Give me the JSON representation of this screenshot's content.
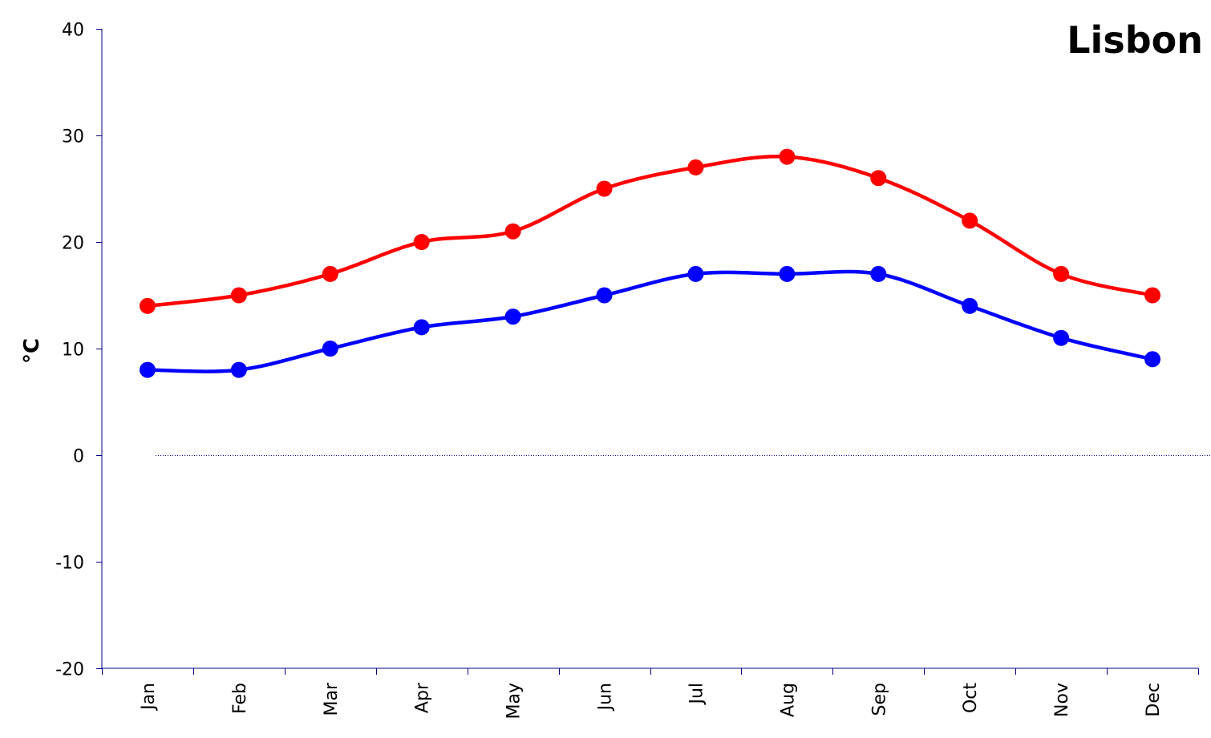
{
  "chart_data": {
    "type": "line",
    "title": "Lisbon",
    "ylabel": "°C",
    "xlabel": "",
    "categories": [
      "Jan",
      "Feb",
      "Mar",
      "Apr",
      "May",
      "Jun",
      "Jul",
      "Aug",
      "Sep",
      "Oct",
      "Nov",
      "Dec"
    ],
    "ylim": [
      -20,
      40
    ],
    "yticks": [
      -20,
      -10,
      0,
      10,
      20,
      30,
      40
    ],
    "zero_reference_line": "dotted",
    "grid": false,
    "legend": "none",
    "series": [
      {
        "color": "#ff0000",
        "values": [
          14,
          15,
          17,
          20,
          21,
          25,
          27,
          28,
          26,
          22,
          17,
          15
        ]
      },
      {
        "color": "#0000ff",
        "values": [
          8,
          8,
          10,
          12,
          13,
          15,
          17,
          17,
          17,
          14,
          11,
          9
        ]
      }
    ]
  }
}
